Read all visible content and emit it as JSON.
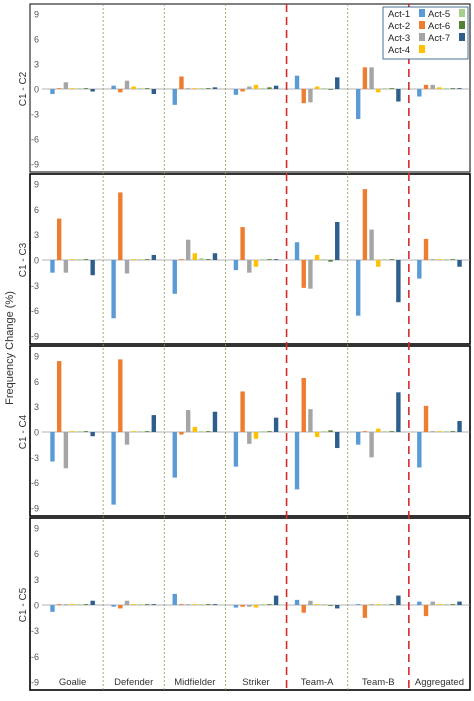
{
  "chart_data": {
    "type": "bar",
    "ylabel": "Frequency Change (%)",
    "categories": [
      "Goalie",
      "Defender",
      "Midfielder",
      "Striker",
      "Team-A",
      "Team-B",
      "Aggregated"
    ],
    "yticks": [
      9,
      6,
      3,
      0,
      -3,
      -6,
      -9
    ],
    "ylim": [
      -9,
      9
    ],
    "grid": false,
    "legend_position": "top-right",
    "series": [
      {
        "name": "Act-1",
        "color": "#5b9bd5"
      },
      {
        "name": "Act-2",
        "color": "#ed7d31"
      },
      {
        "name": "Act-3",
        "color": "#a5a5a5"
      },
      {
        "name": "Act-4",
        "color": "#ffc000"
      },
      {
        "name": "Act-5",
        "color": "#a8d08d"
      },
      {
        "name": "Act-6",
        "color": "#548235"
      },
      {
        "name": "Act-7",
        "color": "#2e5e8c"
      }
    ],
    "panels": [
      {
        "label": "C1 - C2",
        "values": [
          [
            -0.6,
            0.1,
            0.8,
            0.1,
            0.1,
            0.1,
            -0.3
          ],
          [
            0.4,
            -0.4,
            1.0,
            0.3,
            0.1,
            0.1,
            -0.6
          ],
          [
            -1.9,
            1.5,
            0.1,
            0.1,
            0.1,
            0.1,
            0.2
          ],
          [
            -0.7,
            -0.3,
            0.3,
            0.5,
            0.1,
            0.2,
            0.4
          ],
          [
            1.6,
            -1.7,
            -1.6,
            0.3,
            0.1,
            -0.1,
            1.4
          ],
          [
            -3.6,
            2.6,
            2.6,
            -0.4,
            0.1,
            0.1,
            -1.5
          ],
          [
            -0.9,
            0.5,
            0.5,
            0.2,
            0.1,
            0.1,
            0.1
          ]
        ]
      },
      {
        "label": "C1 - C3",
        "values": [
          [
            -1.5,
            4.9,
            -1.5,
            0.1,
            0.1,
            0.1,
            -1.8
          ],
          [
            -6.9,
            8.0,
            -1.6,
            0.1,
            0.1,
            0.1,
            0.6
          ],
          [
            -4.0,
            0.1,
            2.4,
            0.8,
            0.2,
            0.1,
            0.8
          ],
          [
            -1.2,
            3.9,
            -1.5,
            -0.8,
            0.1,
            0.1,
            0.1
          ],
          [
            2.1,
            -3.3,
            -3.4,
            0.6,
            0.1,
            -0.2,
            4.5
          ],
          [
            -6.6,
            8.4,
            3.6,
            -0.8,
            0.1,
            0.1,
            -5.0
          ],
          [
            -2.2,
            2.5,
            0.1,
            0.1,
            0.1,
            0.1,
            -0.8
          ]
        ]
      },
      {
        "label": "C1 - C4",
        "values": [
          [
            -3.5,
            8.4,
            -4.3,
            0.1,
            0.1,
            0.1,
            -0.5
          ],
          [
            -8.6,
            8.6,
            -1.5,
            0.1,
            0.1,
            0.1,
            2.0
          ],
          [
            -5.4,
            -0.3,
            2.6,
            0.6,
            0.1,
            0.1,
            2.4
          ],
          [
            -4.1,
            4.8,
            -1.4,
            -0.8,
            0.1,
            0.1,
            1.7
          ],
          [
            -6.8,
            6.4,
            2.7,
            -0.6,
            0.1,
            0.2,
            -1.9
          ],
          [
            -1.5,
            0.1,
            -3.0,
            0.4,
            0.1,
            0.1,
            4.7
          ],
          [
            -4.2,
            3.1,
            0.1,
            0.1,
            0.1,
            0.1,
            1.3
          ]
        ]
      },
      {
        "label": "C1 - C5",
        "values": [
          [
            -0.8,
            0.1,
            0.1,
            0.1,
            0.1,
            0.1,
            0.5
          ],
          [
            -0.2,
            -0.4,
            0.5,
            0.1,
            0.1,
            0.1,
            0.1
          ],
          [
            1.3,
            0.1,
            0.1,
            0.1,
            0.1,
            0.1,
            0.1
          ],
          [
            -0.3,
            -0.2,
            -0.2,
            -0.3,
            0.1,
            0.1,
            1.1
          ],
          [
            0.6,
            -0.9,
            0.5,
            0.1,
            0.1,
            -0.1,
            -0.4
          ],
          [
            0.1,
            -1.5,
            0.1,
            0.1,
            0.1,
            0.1,
            1.1
          ],
          [
            0.4,
            -1.3,
            0.4,
            0.1,
            0.1,
            0.1,
            0.4
          ]
        ]
      }
    ]
  }
}
